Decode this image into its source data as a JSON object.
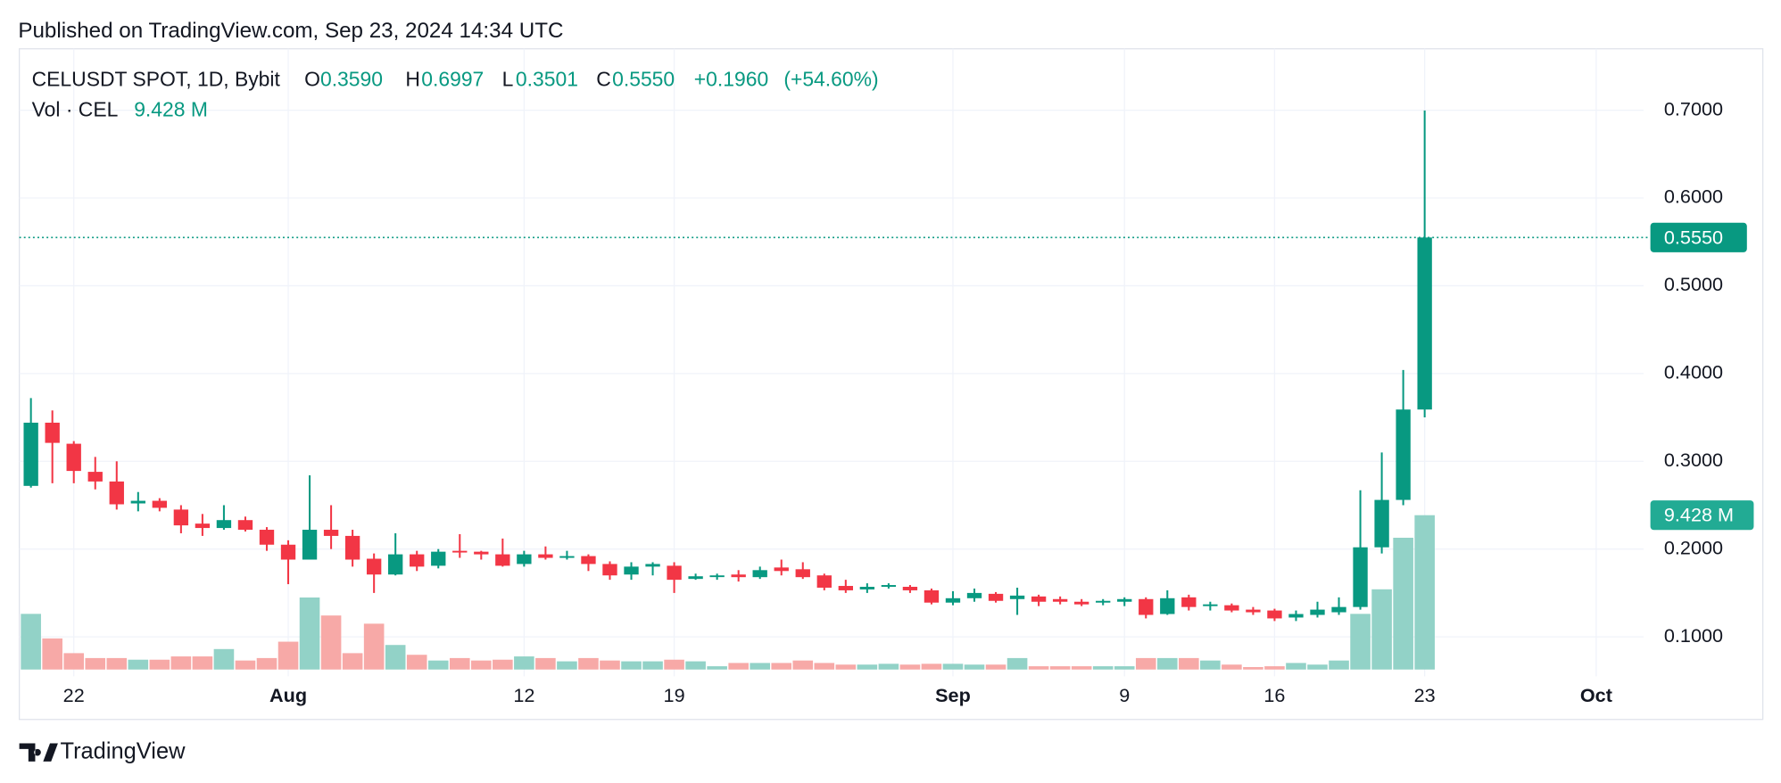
{
  "published": "Published on TradingView.com, Sep 23, 2024 14:34 UTC",
  "brand": "TradingView",
  "chart_data": {
    "type": "candlestick",
    "legend": {
      "symbol": "CELUSDT SPOT, 1D, Bybit",
      "open_key": "O",
      "open": "0.3590",
      "high_key": "H",
      "high": "0.6997",
      "low_key": "L",
      "low": "0.3501",
      "close_key": "C",
      "close": "0.5550",
      "change": "+0.1960",
      "change_pct": "(+54.60%)",
      "volume_name": "Vol · CEL",
      "volume": "9.428 M"
    },
    "x": [
      "2024-07-20",
      "2024-07-21",
      "2024-07-22",
      "2024-07-23",
      "2024-07-24",
      "2024-07-25",
      "2024-07-26",
      "2024-07-27",
      "2024-07-28",
      "2024-07-29",
      "2024-07-30",
      "2024-07-31",
      "2024-08-01",
      "2024-08-02",
      "2024-08-03",
      "2024-08-04",
      "2024-08-05",
      "2024-08-06",
      "2024-08-07",
      "2024-08-08",
      "2024-08-09",
      "2024-08-10",
      "2024-08-11",
      "2024-08-12",
      "2024-08-13",
      "2024-08-14",
      "2024-08-15",
      "2024-08-16",
      "2024-08-17",
      "2024-08-18",
      "2024-08-19",
      "2024-08-20",
      "2024-08-21",
      "2024-08-22",
      "2024-08-23",
      "2024-08-24",
      "2024-08-25",
      "2024-08-26",
      "2024-08-27",
      "2024-08-28",
      "2024-08-29",
      "2024-08-30",
      "2024-08-31",
      "2024-09-01",
      "2024-09-02",
      "2024-09-03",
      "2024-09-04",
      "2024-09-05",
      "2024-09-06",
      "2024-09-07",
      "2024-09-08",
      "2024-09-09",
      "2024-09-10",
      "2024-09-11",
      "2024-09-12",
      "2024-09-13",
      "2024-09-14",
      "2024-09-15",
      "2024-09-16",
      "2024-09-17",
      "2024-09-18",
      "2024-09-19",
      "2024-09-20",
      "2024-09-21",
      "2024-09-22",
      "2024-09-23"
    ],
    "open": [
      0.272,
      0.344,
      0.32,
      0.288,
      0.277,
      0.252,
      0.255,
      0.245,
      0.229,
      0.224,
      0.233,
      0.222,
      0.205,
      0.188,
      0.222,
      0.215,
      0.189,
      0.171,
      0.194,
      0.181,
      0.198,
      0.197,
      0.194,
      0.183,
      0.194,
      0.19,
      0.192,
      0.183,
      0.171,
      0.18,
      0.181,
      0.166,
      0.169,
      0.171,
      0.168,
      0.179,
      0.177,
      0.17,
      0.158,
      0.154,
      0.157,
      0.157,
      0.153,
      0.139,
      0.144,
      0.149,
      0.143,
      0.146,
      0.143,
      0.14,
      0.139,
      0.14,
      0.143,
      0.126,
      0.145,
      0.135,
      0.136,
      0.131,
      0.13,
      0.122,
      0.125,
      0.128,
      0.134,
      0.202,
      0.256,
      0.359
    ],
    "high": [
      0.372,
      0.358,
      0.323,
      0.305,
      0.3,
      0.265,
      0.258,
      0.25,
      0.24,
      0.25,
      0.237,
      0.225,
      0.21,
      0.284,
      0.25,
      0.222,
      0.195,
      0.218,
      0.198,
      0.2,
      0.217,
      0.198,
      0.212,
      0.198,
      0.203,
      0.198,
      0.194,
      0.186,
      0.185,
      0.185,
      0.185,
      0.172,
      0.172,
      0.176,
      0.18,
      0.188,
      0.185,
      0.172,
      0.165,
      0.161,
      0.161,
      0.159,
      0.155,
      0.152,
      0.155,
      0.151,
      0.156,
      0.148,
      0.146,
      0.143,
      0.143,
      0.145,
      0.145,
      0.153,
      0.148,
      0.14,
      0.138,
      0.134,
      0.132,
      0.13,
      0.14,
      0.145,
      0.267,
      0.31,
      0.404,
      0.6997
    ],
    "low": [
      0.27,
      0.275,
      0.275,
      0.268,
      0.245,
      0.243,
      0.243,
      0.218,
      0.215,
      0.222,
      0.22,
      0.198,
      0.16,
      0.188,
      0.2,
      0.18,
      0.15,
      0.17,
      0.175,
      0.178,
      0.19,
      0.188,
      0.18,
      0.18,
      0.188,
      0.188,
      0.175,
      0.165,
      0.165,
      0.17,
      0.15,
      0.165,
      0.165,
      0.163,
      0.166,
      0.17,
      0.166,
      0.153,
      0.15,
      0.15,
      0.155,
      0.15,
      0.137,
      0.136,
      0.14,
      0.139,
      0.125,
      0.135,
      0.137,
      0.135,
      0.136,
      0.135,
      0.121,
      0.125,
      0.13,
      0.13,
      0.128,
      0.125,
      0.118,
      0.118,
      0.122,
      0.125,
      0.131,
      0.195,
      0.25,
      0.3501
    ],
    "close": [
      0.344,
      0.321,
      0.289,
      0.277,
      0.251,
      0.255,
      0.247,
      0.227,
      0.224,
      0.233,
      0.222,
      0.205,
      0.188,
      0.222,
      0.215,
      0.188,
      0.171,
      0.194,
      0.18,
      0.197,
      0.197,
      0.194,
      0.181,
      0.194,
      0.19,
      0.192,
      0.183,
      0.17,
      0.18,
      0.183,
      0.165,
      0.169,
      0.17,
      0.168,
      0.176,
      0.175,
      0.168,
      0.156,
      0.153,
      0.157,
      0.159,
      0.153,
      0.139,
      0.144,
      0.15,
      0.141,
      0.147,
      0.14,
      0.14,
      0.137,
      0.141,
      0.143,
      0.125,
      0.144,
      0.134,
      0.137,
      0.13,
      0.128,
      0.121,
      0.126,
      0.131,
      0.134,
      0.202,
      0.256,
      0.359,
      0.555
    ],
    "volume": [
      3.4,
      1.9,
      1.0,
      0.7,
      0.7,
      0.6,
      0.6,
      0.8,
      0.8,
      1.25,
      0.55,
      0.7,
      1.7,
      4.4,
      3.3,
      1.0,
      2.8,
      1.5,
      0.9,
      0.55,
      0.7,
      0.55,
      0.6,
      0.8,
      0.7,
      0.5,
      0.7,
      0.55,
      0.5,
      0.5,
      0.6,
      0.5,
      0.2,
      0.4,
      0.4,
      0.4,
      0.55,
      0.4,
      0.3,
      0.3,
      0.35,
      0.3,
      0.35,
      0.35,
      0.3,
      0.3,
      0.7,
      0.2,
      0.2,
      0.2,
      0.2,
      0.2,
      0.7,
      0.7,
      0.7,
      0.55,
      0.3,
      0.15,
      0.2,
      0.4,
      0.3,
      0.55,
      3.4,
      4.9,
      8.05,
      9.428
    ],
    "up_color": "#089981",
    "down_color": "#f23645",
    "volume_up_color": "#92d2c7",
    "volume_down_color": "#f7a9a7",
    "xlim": [
      "2024-07-19T11:00",
      "2024-10-03T05:00"
    ],
    "xticks": [
      {
        "value": "2024-07-22",
        "label": "22"
      },
      {
        "value": "2024-08-01",
        "label": "Aug"
      },
      {
        "value": "2024-08-12",
        "label": "12"
      },
      {
        "value": "2024-08-19",
        "label": "19"
      },
      {
        "value": "2024-09-01",
        "label": "Sep"
      },
      {
        "value": "2024-09-09",
        "label": "9"
      },
      {
        "value": "2024-09-16",
        "label": "16"
      },
      {
        "value": "2024-09-23",
        "label": "23"
      },
      {
        "value": "2024-10-01",
        "label": "Oct"
      }
    ],
    "ylim": [
      0.055,
      0.77
    ],
    "yticks": [
      {
        "value": 0.1,
        "label": "0.1000"
      },
      {
        "value": 0.2,
        "label": "0.2000"
      },
      {
        "value": 0.3,
        "label": "0.3000"
      },
      {
        "value": 0.4,
        "label": "0.4000"
      },
      {
        "value": 0.5,
        "label": "0.5000"
      },
      {
        "value": 0.6,
        "label": "0.6000"
      },
      {
        "value": 0.7,
        "label": "0.7000"
      }
    ],
    "grid": true
  }
}
